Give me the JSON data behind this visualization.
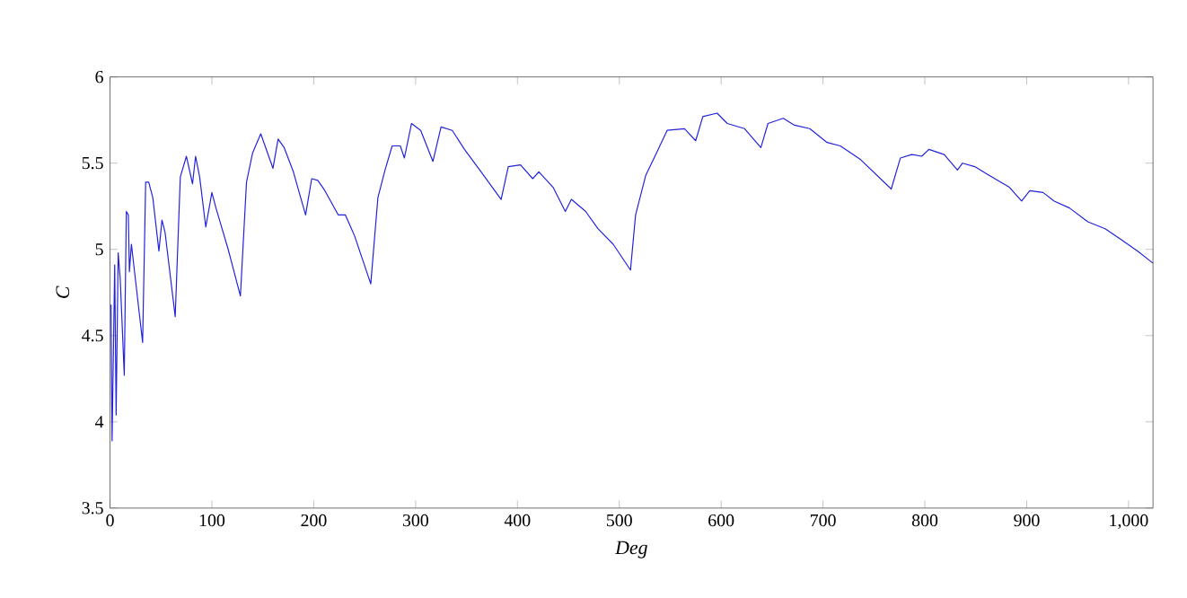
{
  "chart_data": {
    "type": "line",
    "xlabel": "*Deg*",
    "ylabel": "*C*",
    "xlim": [
      0,
      1024
    ],
    "ylim": [
      3.5,
      6
    ],
    "xticks": [
      0,
      100,
      200,
      300,
      400,
      500,
      600,
      700,
      800,
      900,
      {
        "value": 1000,
        "label": "1,000"
      }
    ],
    "yticks": [
      3.5,
      4,
      4.5,
      5,
      5.5,
      6
    ],
    "marker": "none",
    "line_style": "solid",
    "series": [
      {
        "color": "#2222dd",
        "x": [
          1,
          2,
          4.6,
          6,
          8,
          10,
          14,
          16,
          18,
          19,
          21,
          32,
          35,
          38,
          42,
          48,
          51,
          54,
          64,
          69,
          75,
          81,
          84,
          88,
          94,
          100,
          104,
          110,
          116,
          128,
          134,
          140,
          148,
          160,
          165,
          171,
          180,
          192,
          198,
          204,
          211,
          224,
          231,
          240,
          256,
          263,
          270,
          277,
          285,
          289,
          296,
          305,
          317,
          325,
          336,
          348,
          363,
          384,
          391,
          403,
          415,
          421,
          435,
          447,
          453,
          467,
          479,
          494,
          511,
          516,
          526,
          535,
          547,
          564,
          575,
          582,
          596,
          606,
          623,
          639,
          646,
          661,
          672,
          687,
          704,
          717,
          737,
          767,
          776,
          787,
          797,
          804,
          819,
          832,
          837,
          849,
          863,
          883,
          895,
          903,
          916,
          927,
          942,
          960,
          977,
          992,
          1009,
          1024
        ],
        "values": [
          4.68,
          3.89,
          4.91,
          4.04,
          4.98,
          4.83,
          4.27,
          5.22,
          5.2,
          4.87,
          5.03,
          4.46,
          5.39,
          5.39,
          5.3,
          4.99,
          5.17,
          5.1,
          4.61,
          5.42,
          5.54,
          5.38,
          5.54,
          5.42,
          5.13,
          5.33,
          5.24,
          5.12,
          5.0,
          4.73,
          5.39,
          5.56,
          5.67,
          5.47,
          5.64,
          5.59,
          5.45,
          5.2,
          5.41,
          5.4,
          5.34,
          5.2,
          5.2,
          5.08,
          4.8,
          5.3,
          5.46,
          5.6,
          5.6,
          5.53,
          5.73,
          5.69,
          5.51,
          5.71,
          5.69,
          5.58,
          5.46,
          5.29,
          5.48,
          5.49,
          5.41,
          5.45,
          5.36,
          5.22,
          5.29,
          5.22,
          5.12,
          5.03,
          4.88,
          5.2,
          5.43,
          5.54,
          5.69,
          5.7,
          5.63,
          5.77,
          5.79,
          5.73,
          5.7,
          5.59,
          5.73,
          5.76,
          5.72,
          5.7,
          5.62,
          5.6,
          5.52,
          5.35,
          5.53,
          5.55,
          5.54,
          5.58,
          5.55,
          5.46,
          5.5,
          5.48,
          5.43,
          5.36,
          5.28,
          5.34,
          5.33,
          5.28,
          5.24,
          5.16,
          5.12,
          5.06,
          4.99,
          4.92
        ]
      }
    ]
  }
}
